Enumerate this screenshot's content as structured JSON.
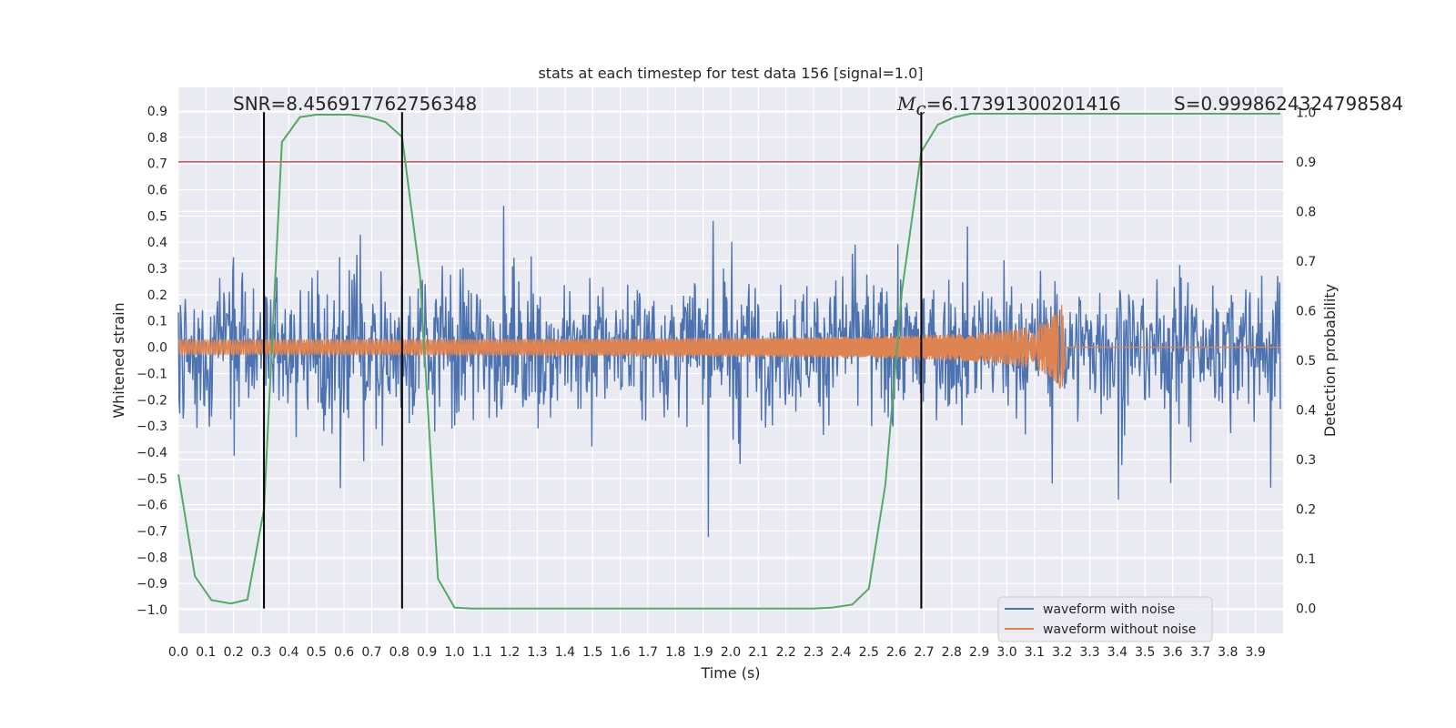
{
  "chart_data": {
    "type": "line",
    "title": "stats at each timestep for test data 156 [signal=1.0]",
    "xlabel": "Time (s)",
    "ylabel": "Whitened strain",
    "y2label": "Detection probability",
    "xlim": [
      0.0,
      4.0
    ],
    "ylim": [
      -1.09,
      0.99
    ],
    "y2lim": [
      -0.05,
      1.05
    ],
    "grid": true,
    "x_ticks": [
      "0.0",
      "0.1",
      "0.2",
      "0.3",
      "0.4",
      "0.5",
      "0.6",
      "0.7",
      "0.8",
      "0.9",
      "1.0",
      "1.1",
      "1.2",
      "1.3",
      "1.4",
      "1.5",
      "1.6",
      "1.7",
      "1.8",
      "1.9",
      "2.0",
      "2.1",
      "2.2",
      "2.3",
      "2.4",
      "2.5",
      "2.6",
      "2.7",
      "2.8",
      "2.9",
      "3.0",
      "3.1",
      "3.2",
      "3.3",
      "3.4",
      "3.5",
      "3.6",
      "3.7",
      "3.8",
      "3.9"
    ],
    "y_ticks": [
      "0.9",
      "0.8",
      "0.7",
      "0.6",
      "0.5",
      "0.4",
      "0.3",
      "0.2",
      "0.1",
      "0.0",
      "−0.1",
      "−0.2",
      "−0.3",
      "−0.4",
      "−0.5",
      "−0.6",
      "−0.7",
      "−0.8",
      "−0.9",
      "−1.0"
    ],
    "y2_ticks": [
      "1.0",
      "0.9",
      "0.8",
      "0.7",
      "0.6",
      "0.5",
      "0.4",
      "0.3",
      "0.2",
      "0.1",
      "0.0"
    ],
    "annotations": {
      "snr": "SNR=8.456917762756348",
      "mc_symbol": "M",
      "mc_sub": "c",
      "mc_value": "=6.17391300201416",
      "s": "S=0.9998624324798584"
    },
    "threshold": {
      "value": 0.9,
      "axis": "y2",
      "color": "#c44e52"
    },
    "vlines": [
      0.31,
      0.81,
      2.69
    ],
    "series": [
      {
        "name": "waveform with noise",
        "color": "#4c72b0",
        "type": "noise",
        "amplitude": 0.9,
        "points": 1600
      },
      {
        "name": "waveform without noise",
        "color": "#dd8452",
        "type": "chirp",
        "x_end": 3.21,
        "amp_start": 0.022,
        "amp_end": 0.21
      },
      {
        "color": "#55a868",
        "axis": "y2",
        "x": [
          0.0,
          0.06,
          0.12,
          0.19,
          0.25,
          0.31,
          0.375,
          0.44,
          0.5,
          0.56,
          0.62,
          0.69,
          0.75,
          0.81,
          0.875,
          0.94,
          1.0,
          1.06,
          1.12,
          1.5,
          2.0,
          2.3,
          2.37,
          2.44,
          2.5,
          2.56,
          2.62,
          2.69,
          2.75,
          2.81,
          2.87,
          3.0,
          3.5,
          3.99
        ],
        "y": [
          0.27,
          0.065,
          0.017,
          0.01,
          0.018,
          0.2,
          0.94,
          0.99,
          0.995,
          0.995,
          0.995,
          0.99,
          0.98,
          0.95,
          0.67,
          0.06,
          0.002,
          0.0,
          0.0,
          0.0,
          0.0,
          0.0,
          0.002,
          0.008,
          0.04,
          0.25,
          0.64,
          0.92,
          0.975,
          0.99,
          0.997,
          0.997,
          0.997,
          0.997
        ]
      }
    ],
    "legend": {
      "placement": "lower-right",
      "entries": [
        "waveform with noise",
        "waveform without noise"
      ]
    }
  }
}
